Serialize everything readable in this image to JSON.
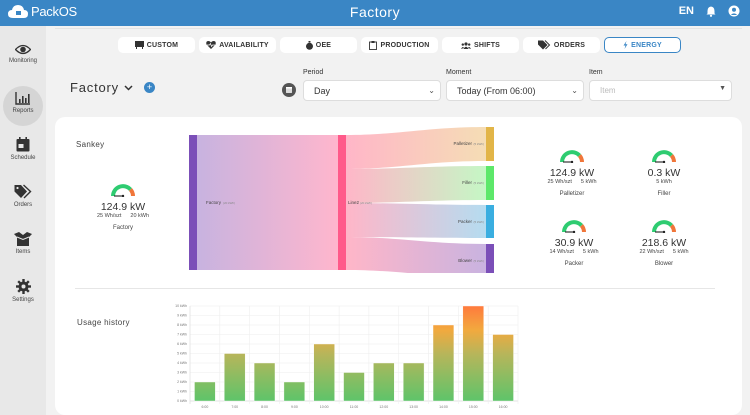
{
  "app": {
    "name": "PackOS",
    "title": "Factory",
    "language": "EN",
    "icons": [
      "bell-icon",
      "user-icon"
    ]
  },
  "sidebar": {
    "items": [
      {
        "label": "Monitoring",
        "icon": "eye-icon",
        "active": false
      },
      {
        "label": "Reports",
        "icon": "bar-chart-icon",
        "active": true
      },
      {
        "label": "Schedule",
        "icon": "calendar-icon",
        "active": false
      },
      {
        "label": "Orders",
        "icon": "tags-icon",
        "active": false
      },
      {
        "label": "Items",
        "icon": "box-icon",
        "active": false
      },
      {
        "label": "Settings",
        "icon": "gear-icon",
        "active": false
      }
    ]
  },
  "tabs": [
    {
      "label": "CUSTOM",
      "icon": "easel-icon",
      "active": false
    },
    {
      "label": "AVAILABILITY",
      "icon": "heartbeat-icon",
      "active": false
    },
    {
      "label": "OEE",
      "icon": "stopwatch-icon",
      "active": false
    },
    {
      "label": "PRODUCTION",
      "icon": "clipboard-icon",
      "active": false
    },
    {
      "label": "SHIFTS",
      "icon": "users-icon",
      "active": false
    },
    {
      "label": "ORDERS",
      "icon": "tags-icon",
      "active": false
    },
    {
      "label": "ENERGY",
      "icon": "bolt-icon",
      "active": true
    }
  ],
  "colors": {
    "brand": "#3a86c5",
    "gauge_green": "#2ecc71",
    "gauge_orange": "#f0763a"
  },
  "filters": {
    "entity": "Factory",
    "period": {
      "label": "Period",
      "value": "Day"
    },
    "moment": {
      "label": "Moment",
      "value": "Today (From 06:00)"
    },
    "item": {
      "label": "Item",
      "placeholder": "Item"
    }
  },
  "sankey": {
    "title": "Sankey",
    "nodes": [
      {
        "name": "Factory",
        "value": "(20 kWh)",
        "color": "#7b4fb8"
      },
      {
        "name": "Line2",
        "value": "(20 kWh)",
        "color": "#ff5a8a"
      },
      {
        "name": "Palletizer",
        "value": "(5 kWh)",
        "color": "#e2b548"
      },
      {
        "name": "Filler",
        "value": "(5 kWh)",
        "color": "#5de86a"
      },
      {
        "name": "Packer",
        "value": "(5 kWh)",
        "color": "#3aaee0"
      },
      {
        "name": "Blower",
        "value": "(5 kWh)",
        "color": "#7b4fb8"
      }
    ]
  },
  "gauges": {
    "factory": {
      "power": "124.9 kW",
      "per_unit": "25 Wh/szt",
      "energy": "20 kWh",
      "name": "Factory"
    },
    "palletizer": {
      "power": "124.9 kW",
      "per_unit": "25 Wh/szt",
      "energy": "5 kWh",
      "name": "Palletizer"
    },
    "filler": {
      "power": "0.3 kW",
      "per_unit": "",
      "energy": "5 kWh",
      "name": "Filler"
    },
    "packer": {
      "power": "30.9 kW",
      "per_unit": "14 Wh/szt",
      "energy": "5 kWh",
      "name": "Packer"
    },
    "blower": {
      "power": "218.6 kW",
      "per_unit": "22 Wh/szt",
      "energy": "5 kWh",
      "name": "Blower"
    }
  },
  "usage": {
    "title": "Usage history"
  },
  "chart_data": {
    "type": "bar",
    "title": "Usage history",
    "categories": [
      "6:00",
      "7:00",
      "8:00",
      "9:00",
      "10:00",
      "11:00",
      "12:00",
      "13:00",
      "14:00",
      "15:00",
      "16:00"
    ],
    "values": [
      2,
      5,
      4,
      2,
      6,
      3,
      4,
      4,
      8,
      10,
      7
    ],
    "yticks": [
      "0 kWh",
      "1 kWh",
      "2 kWh",
      "3 kWh",
      "4 kWh",
      "5 kWh",
      "6 kWh",
      "7 kWh",
      "8 kWh",
      "9 kWh",
      "10 kWh"
    ],
    "ylim": [
      0,
      10
    ],
    "yunit": "kWh",
    "grid": true
  }
}
